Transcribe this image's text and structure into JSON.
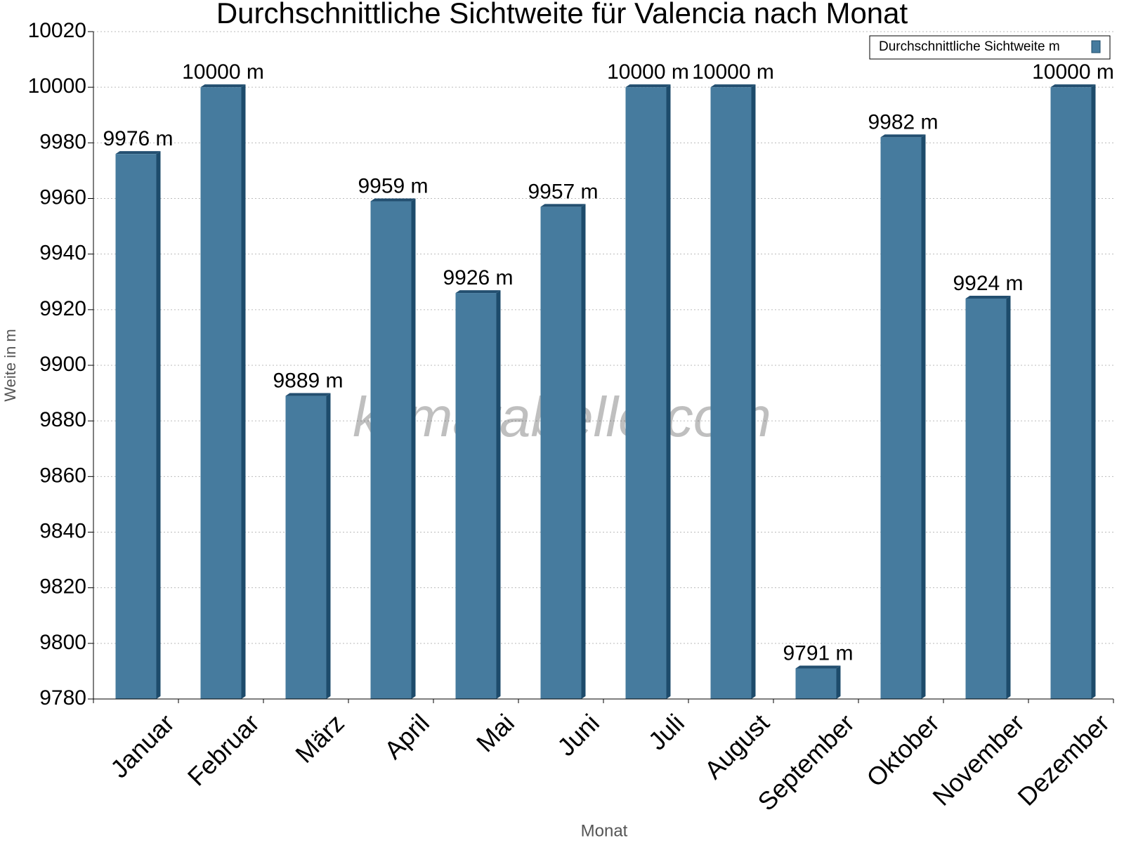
{
  "chart_data": {
    "type": "bar",
    "title": "Durchschnittliche Sichtweite für Valencia nach Monat",
    "x_label": "Monat",
    "y_label": "Weite in m",
    "watermark": "klimatabelle.com",
    "categories": [
      "Januar",
      "Februar",
      "März",
      "April",
      "Mai",
      "Juni",
      "Juli",
      "August",
      "September",
      "Oktober",
      "November",
      "Dezember"
    ],
    "series": [
      {
        "name": "Durchschnittliche Sichtweite m",
        "color": "#467b9e",
        "values": [
          9976,
          10000,
          9889,
          9959,
          9926,
          9957,
          10000,
          10000,
          9791,
          9982,
          9924,
          10000
        ],
        "value_labels": [
          "9976 m",
          "10000 m",
          "9889 m",
          "9959 m",
          "9926 m",
          "9957 m",
          "10000 m",
          "10000 m",
          "9791 m",
          "9982 m",
          "9924 m",
          "10000 m"
        ]
      }
    ],
    "ylim": [
      9780,
      10020
    ],
    "yticks": [
      9780,
      9800,
      9820,
      9840,
      9860,
      9880,
      9900,
      9920,
      9940,
      9960,
      9980,
      10000,
      10020
    ],
    "grid": true,
    "legend": "top-right"
  }
}
